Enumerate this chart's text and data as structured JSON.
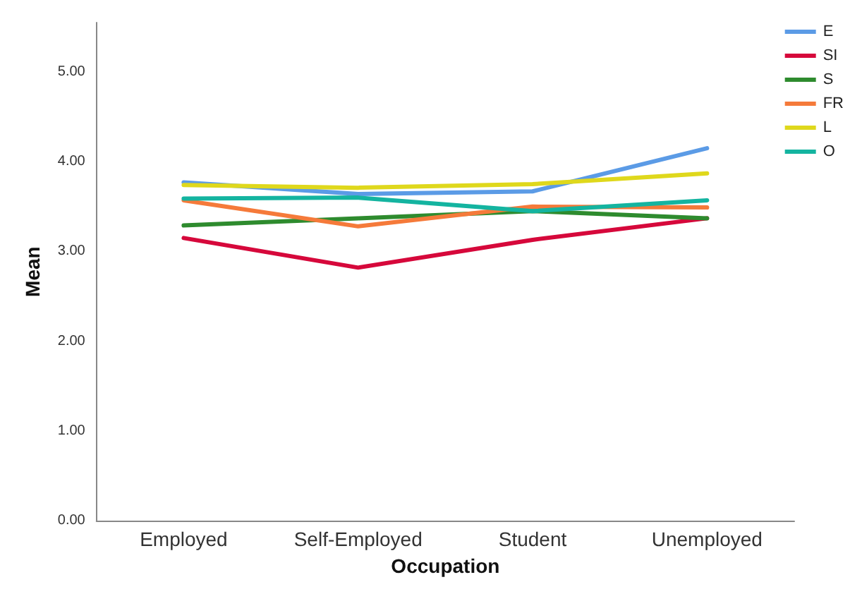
{
  "chart_data": {
    "type": "line",
    "xlabel": "Occupation",
    "ylabel": "Mean",
    "categories": [
      "Employed",
      "Self-Employed",
      "Student",
      "Unemployed"
    ],
    "series": [
      {
        "name": "E",
        "color": "#5b9be6",
        "values": [
          3.77,
          3.64,
          3.67,
          4.15
        ]
      },
      {
        "name": "SI",
        "color": "#d6083b",
        "values": [
          3.15,
          2.82,
          3.13,
          3.37
        ]
      },
      {
        "name": "S",
        "color": "#2e8b2e",
        "values": [
          3.29,
          3.37,
          3.45,
          3.37
        ]
      },
      {
        "name": "FR",
        "color": "#f57a3a",
        "values": [
          3.57,
          3.28,
          3.5,
          3.49
        ]
      },
      {
        "name": "L",
        "color": "#dfd81c",
        "values": [
          3.74,
          3.71,
          3.75,
          3.87
        ]
      },
      {
        "name": "O",
        "color": "#14b4a0",
        "values": [
          3.59,
          3.6,
          3.45,
          3.57
        ]
      }
    ],
    "ylim": [
      0,
      5.55
    ],
    "yticks": [
      {
        "value": 0,
        "label": "0.00"
      },
      {
        "value": 1,
        "label": "1.00"
      },
      {
        "value": 2,
        "label": "2.00"
      },
      {
        "value": 3,
        "label": "3.00"
      },
      {
        "value": 4,
        "label": "4.00"
      },
      {
        "value": 5,
        "label": "5.00"
      }
    ],
    "grid": false,
    "legend": "top right",
    "marker": "none",
    "line_style": "solid"
  }
}
